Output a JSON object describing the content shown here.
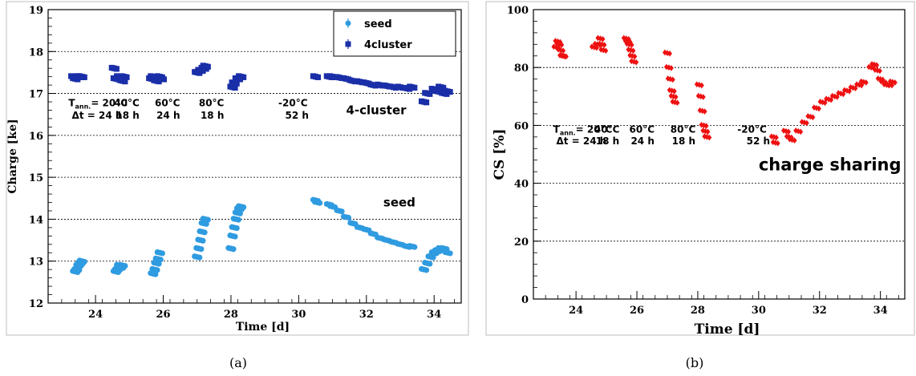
{
  "chart_data": [
    {
      "type": "scatter",
      "xlabel": "Time [d]",
      "ylabel": "Charge [ke]",
      "xlim": [
        22.6,
        34.8
      ],
      "ylim": [
        12,
        19
      ],
      "xticks": [
        "24",
        "26",
        "28",
        "30",
        "32",
        "34"
      ],
      "yticks": [
        "12",
        "13",
        "14",
        "15",
        "16",
        "17",
        "18",
        "19"
      ],
      "grid": true,
      "legend_position": "top-right",
      "caption": "(a)",
      "series": [
        {
          "name": "seed",
          "color": "#2f9be0",
          "marker": "circle",
          "x": [
            23.4,
            23.45,
            23.5,
            23.55,
            23.6,
            24.6,
            24.65,
            24.7,
            24.75,
            24.8,
            25.7,
            25.75,
            25.8,
            25.85,
            25.9,
            27.0,
            27.05,
            27.1,
            27.15,
            27.2,
            27.25,
            28.0,
            28.05,
            28.1,
            28.15,
            28.2,
            28.25,
            28.3,
            30.5,
            30.55,
            30.9,
            31.0,
            31.2,
            31.4,
            31.6,
            31.8,
            32.0,
            32.2,
            32.4,
            32.6,
            32.8,
            33.0,
            33.2,
            33.35,
            33.7,
            33.8,
            33.9,
            34.0,
            34.1,
            34.2,
            34.3,
            34.4
          ],
          "y": [
            12.75,
            12.8,
            12.9,
            12.95,
            13.0,
            12.75,
            12.8,
            12.9,
            12.85,
            12.9,
            12.7,
            12.8,
            12.95,
            13.05,
            13.2,
            13.1,
            13.3,
            13.5,
            13.7,
            13.9,
            14.0,
            13.3,
            13.6,
            13.8,
            14.0,
            14.15,
            14.25,
            14.3,
            14.45,
            14.4,
            14.35,
            14.3,
            14.2,
            14.05,
            13.9,
            13.8,
            13.75,
            13.65,
            13.55,
            13.5,
            13.45,
            13.4,
            13.35,
            13.35,
            12.8,
            12.95,
            13.1,
            13.2,
            13.25,
            13.3,
            13.3,
            13.2
          ]
        },
        {
          "name": "4cluster",
          "color": "#1a2ea8",
          "marker": "square",
          "x": [
            23.35,
            23.4,
            23.5,
            23.55,
            23.6,
            24.55,
            24.6,
            24.7,
            24.8,
            24.85,
            25.65,
            25.7,
            25.8,
            25.9,
            25.95,
            27.0,
            27.1,
            27.2,
            27.25,
            28.05,
            28.1,
            28.2,
            28.3,
            30.5,
            30.9,
            31.0,
            31.2,
            31.4,
            31.6,
            31.8,
            32.0,
            32.2,
            32.4,
            32.6,
            32.8,
            33.0,
            33.2,
            33.35,
            33.7,
            33.8,
            34.0,
            34.1,
            34.2,
            34.3,
            34.4
          ],
          "y": [
            17.4,
            17.35,
            17.4,
            17.4,
            17.4,
            17.6,
            17.35,
            17.4,
            17.3,
            17.4,
            17.35,
            17.4,
            17.3,
            17.4,
            17.35,
            17.5,
            17.55,
            17.6,
            17.65,
            17.15,
            17.25,
            17.35,
            17.4,
            17.4,
            17.4,
            17.4,
            17.38,
            17.35,
            17.3,
            17.28,
            17.25,
            17.2,
            17.2,
            17.18,
            17.15,
            17.15,
            17.12,
            17.15,
            16.8,
            17.0,
            17.1,
            17.05,
            17.15,
            17.0,
            17.05
          ]
        }
      ],
      "annotations": [
        {
          "text": "T",
          "sub": "ann.",
          "rest": "= 20°C",
          "x": 23.2,
          "y": 16.7
        },
        {
          "text": "Δt = 24 h",
          "x": 23.3,
          "y": 16.4
        },
        {
          "text": "40°C",
          "x": 24.55,
          "y": 16.7
        },
        {
          "text": "18 h",
          "x": 24.6,
          "y": 16.4
        },
        {
          "text": "60°C",
          "x": 25.75,
          "y": 16.7
        },
        {
          "text": "24 h",
          "x": 25.8,
          "y": 16.4
        },
        {
          "text": "80°C",
          "x": 27.05,
          "y": 16.7
        },
        {
          "text": "18 h",
          "x": 27.1,
          "y": 16.4
        },
        {
          "text": "-20°C",
          "x": 29.4,
          "y": 16.7
        },
        {
          "text": "52 h",
          "x": 29.6,
          "y": 16.4
        },
        {
          "text": "4-cluster",
          "x": 31.4,
          "y": 16.5
        },
        {
          "text": "seed",
          "x": 32.5,
          "y": 14.3
        }
      ]
    },
    {
      "type": "scatter",
      "xlabel": "Time [d]",
      "ylabel": "CS [%]",
      "xlim": [
        22.6,
        34.8
      ],
      "ylim": [
        0,
        100
      ],
      "xticks": [
        "24",
        "26",
        "28",
        "30",
        "32",
        "34"
      ],
      "yticks": [
        "0",
        "20",
        "40",
        "60",
        "80",
        "100"
      ],
      "grid": true,
      "caption": "(b)",
      "series": [
        {
          "color": "#ee1111",
          "marker": "diamond",
          "x": [
            23.35,
            23.4,
            23.45,
            23.5,
            23.55,
            23.6,
            24.6,
            24.7,
            24.8,
            24.85,
            24.9,
            25.65,
            25.7,
            25.75,
            25.8,
            25.85,
            25.9,
            27.0,
            27.05,
            27.1,
            27.15,
            27.2,
            27.25,
            28.05,
            28.1,
            28.15,
            28.2,
            28.25,
            28.3,
            30.5,
            30.55,
            30.9,
            31.0,
            31.1,
            31.3,
            31.5,
            31.7,
            31.9,
            32.1,
            32.3,
            32.5,
            32.7,
            32.9,
            33.1,
            33.3,
            33.45,
            33.7,
            33.8,
            33.9,
            34.0,
            34.1,
            34.2,
            34.3,
            34.4
          ],
          "y": [
            87,
            89,
            88,
            86,
            84,
            84,
            87,
            88,
            90,
            88,
            86,
            90,
            89,
            88,
            86,
            84,
            82,
            85,
            80,
            76,
            72,
            70,
            68,
            74,
            70,
            65,
            60,
            58,
            56,
            56,
            54,
            58,
            56,
            55,
            58,
            61,
            63,
            66,
            68,
            69,
            70,
            71,
            72,
            73,
            74,
            75,
            80,
            81,
            79,
            76,
            75,
            74,
            74,
            75
          ]
        }
      ],
      "annotations": [
        {
          "text": "T",
          "sub": "ann.",
          "rest": "= 20°C",
          "x": 23.25,
          "y": 57.5
        },
        {
          "text": "Δt = 24 h",
          "x": 23.35,
          "y": 53.5
        },
        {
          "text": "40°C",
          "x": 24.6,
          "y": 57.5
        },
        {
          "text": "18 h",
          "x": 24.65,
          "y": 53.5
        },
        {
          "text": "60°C",
          "x": 25.75,
          "y": 57.5
        },
        {
          "text": "24 h",
          "x": 25.8,
          "y": 53.5
        },
        {
          "text": "80°C",
          "x": 27.1,
          "y": 57.5
        },
        {
          "text": "18 h",
          "x": 27.15,
          "y": 53.5
        },
        {
          "text": "-20°C",
          "x": 29.3,
          "y": 57.5
        },
        {
          "text": "52 h",
          "x": 29.6,
          "y": 53.5
        },
        {
          "text": "charge sharing",
          "x": 30.0,
          "y": 44.5
        }
      ]
    }
  ]
}
